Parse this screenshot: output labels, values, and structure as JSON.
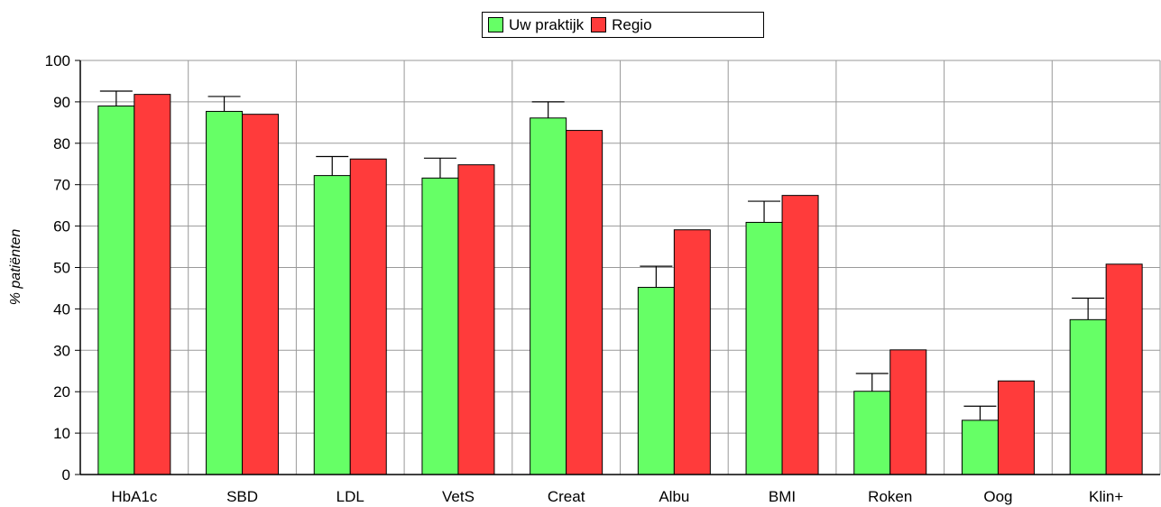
{
  "chart_data": {
    "type": "bar",
    "categories": [
      "HbA1c",
      "SBD",
      "LDL",
      "VetS",
      "Creat",
      "Albu",
      "BMI",
      "Roken",
      "Oog",
      "Klin+"
    ],
    "series": [
      {
        "name": "Uw praktijk",
        "color": "#66ff66",
        "values": [
          89,
          87.7,
          72.2,
          71.6,
          86.1,
          45.2,
          60.9,
          20.1,
          13.1,
          37.4
        ],
        "error_upper": [
          92.6,
          91.3,
          76.8,
          76.4,
          90,
          50.3,
          66,
          24.4,
          16.5,
          42.6
        ]
      },
      {
        "name": "Regio",
        "color": "#ff3b3b",
        "values": [
          91.8,
          87,
          76.2,
          74.8,
          83.1,
          59.1,
          67.4,
          30.1,
          22.6,
          50.8
        ]
      }
    ],
    "ylabel": "% patiënten",
    "xlabel": "",
    "ylim": [
      0,
      100
    ],
    "yticks": [
      0,
      10,
      20,
      30,
      40,
      50,
      60,
      70,
      80,
      90,
      100
    ],
    "grid": true,
    "legend_position": "top-center"
  }
}
